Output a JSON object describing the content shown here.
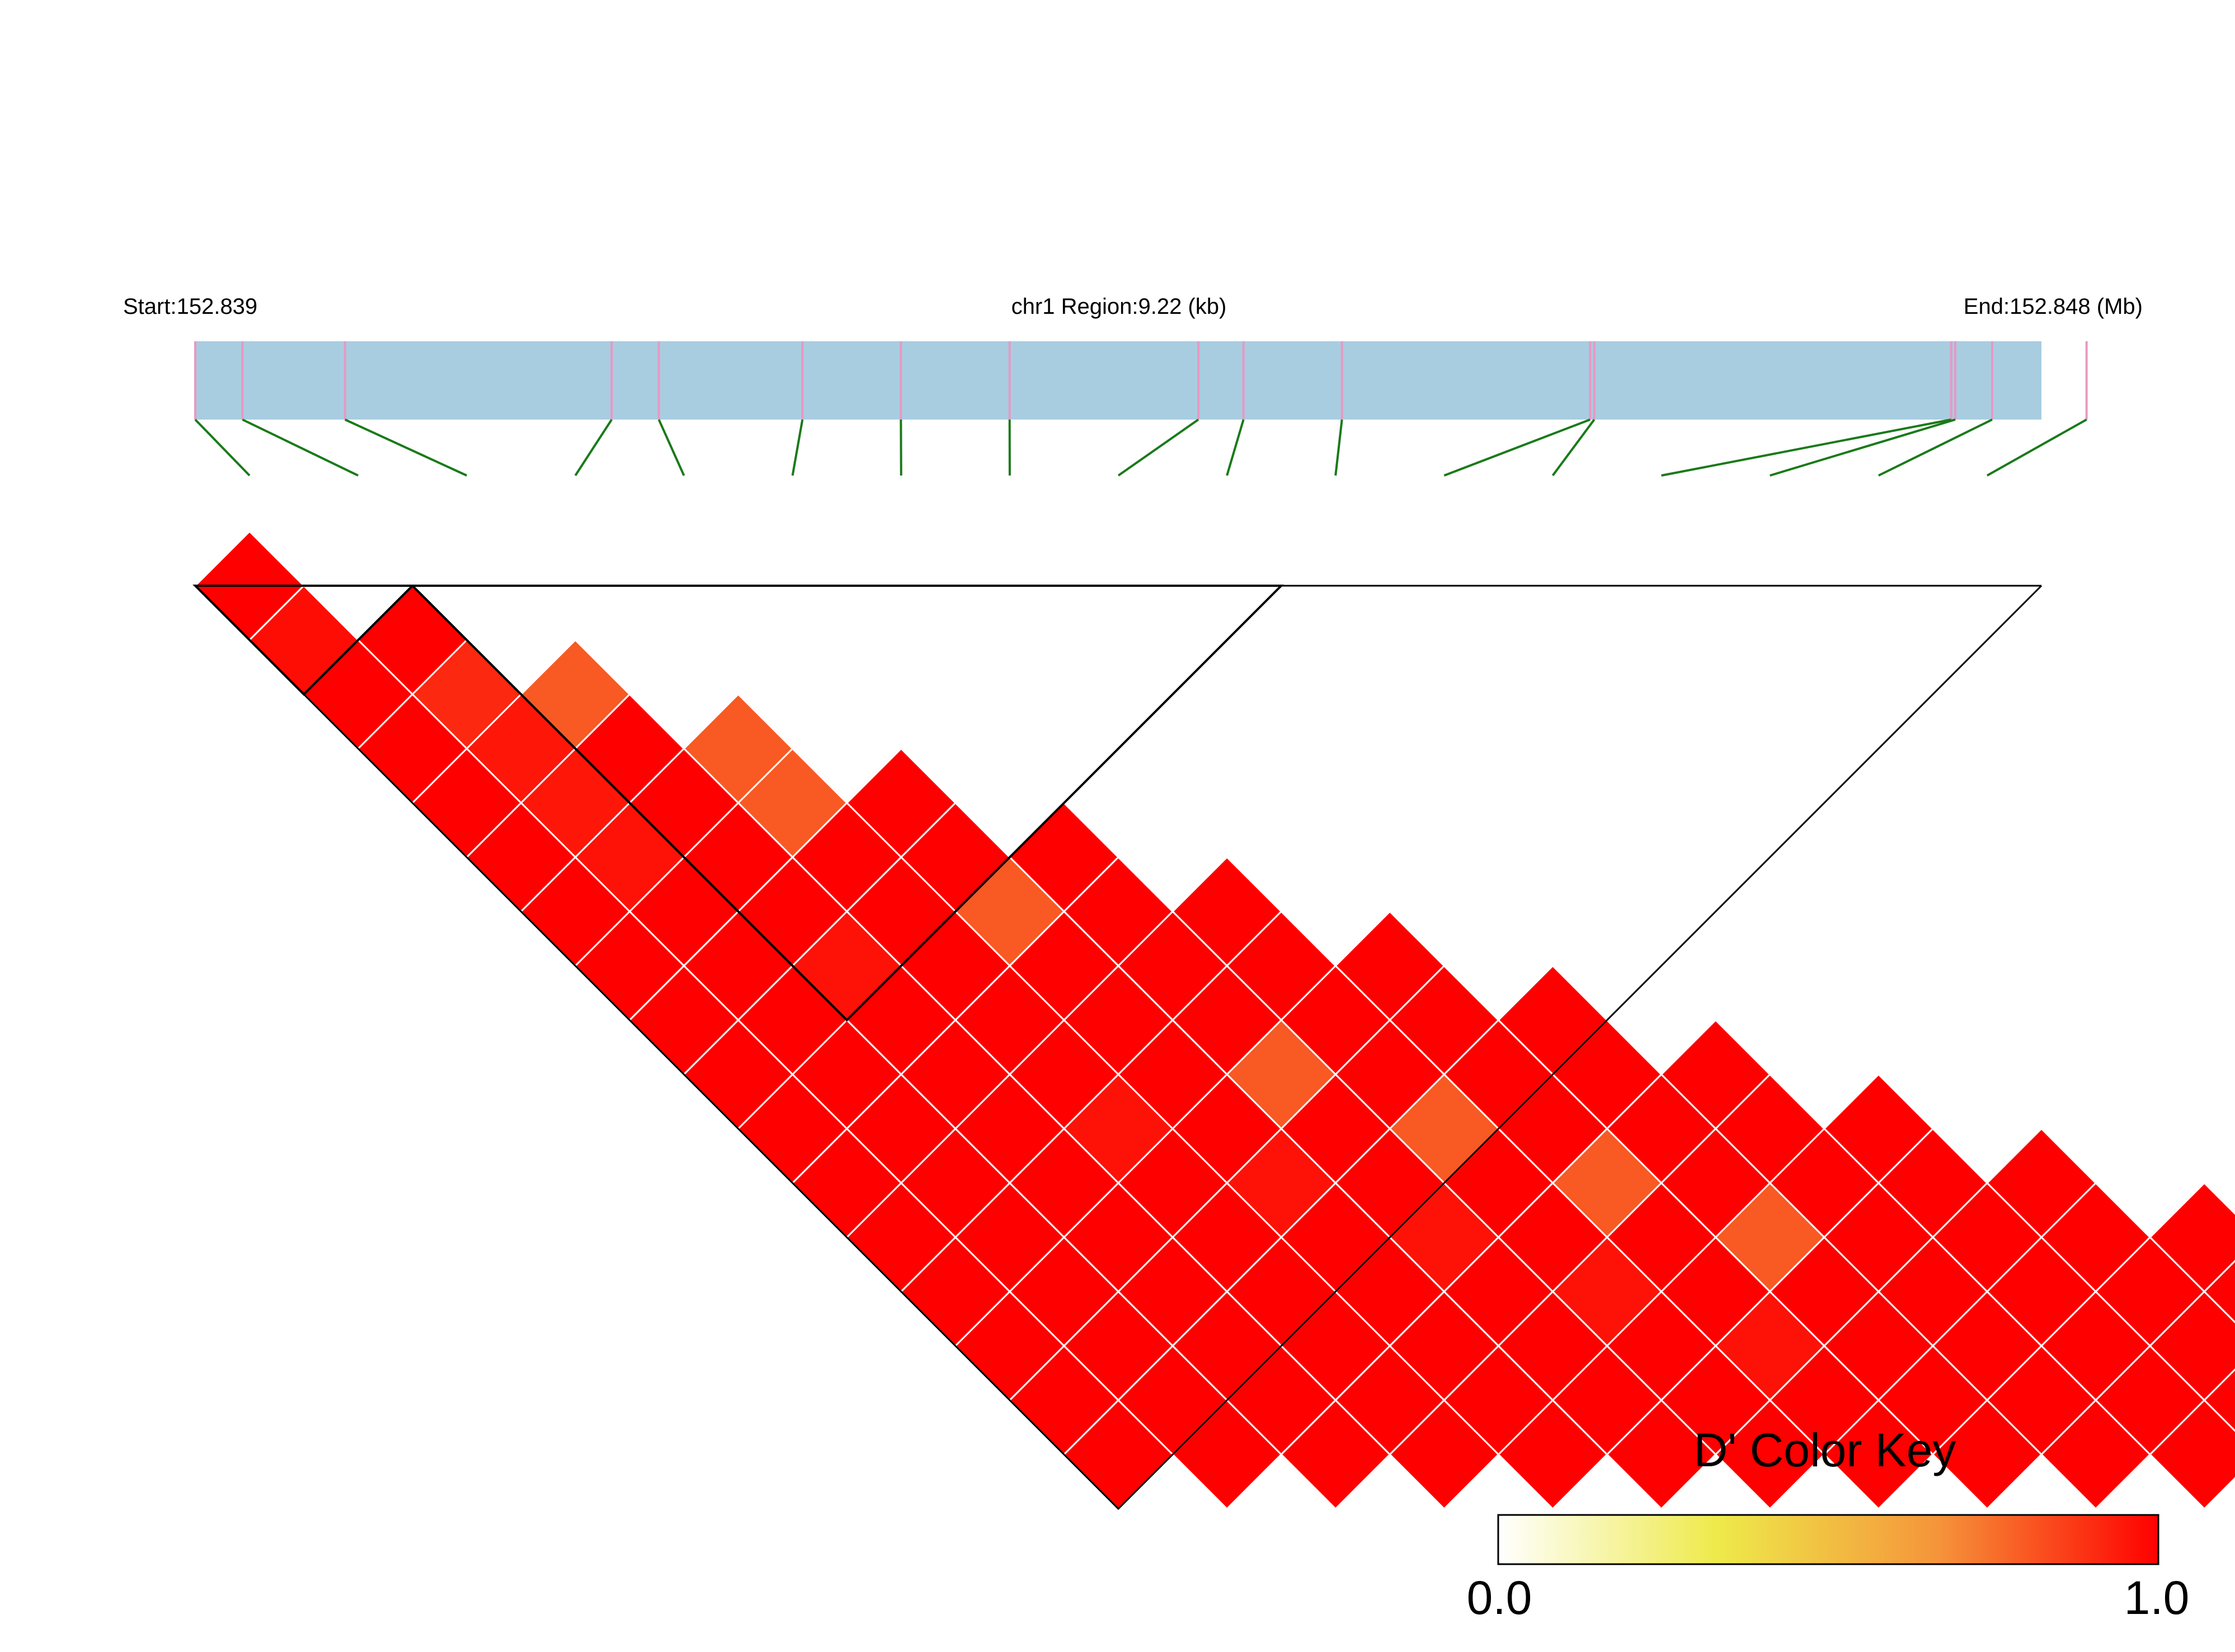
{
  "chart_data": {
    "type": "heatmap",
    "subtype": "ld-triangle",
    "title": "",
    "start_label": "Start:152.839",
    "region_label": "chr1 Region:9.22 (kb)",
    "end_label": "End:152.848 (Mb)",
    "region_start_mb": 152.839,
    "region_end_mb": 152.848,
    "region_length_kb": 9.22,
    "snp_positions_mb": [
      152.839,
      152.83923,
      152.83973,
      152.84103,
      152.84126,
      152.84196,
      152.84244,
      152.84297,
      152.84389,
      152.84411,
      152.84459,
      152.8458,
      152.84582,
      152.84756,
      152.84758,
      152.84776,
      152.84822
    ],
    "measure": "D'",
    "dprime_matrix": [
      [
        1.0
      ],
      [
        0.97,
        1.0
      ],
      [
        1.0,
        0.91,
        0.8
      ],
      [
        1.0,
        0.95,
        1.0,
        0.8
      ],
      [
        1.0,
        0.95,
        1.0,
        0.8,
        1.0
      ],
      [
        1.0,
        0.96,
        1.0,
        1.0,
        1.0,
        1.0
      ],
      [
        1.0,
        1.0,
        1.0,
        1.0,
        0.8,
        1.0,
        1.0
      ],
      [
        1.0,
        1.0,
        0.96,
        1.0,
        1.0,
        1.0,
        1.0,
        1.0
      ],
      [
        1.0,
        1.0,
        1.0,
        1.0,
        1.0,
        1.0,
        1.0,
        1.0,
        1.0
      ],
      [
        1.0,
        1.0,
        1.0,
        1.0,
        1.0,
        0.8,
        1.0,
        1.0,
        1.0,
        1.0
      ],
      [
        1.0,
        1.0,
        1.0,
        0.96,
        1.0,
        1.0,
        0.8,
        1.0,
        1.0,
        1.0,
        1.0
      ],
      [
        1.0,
        1.0,
        1.0,
        1.0,
        0.96,
        1.0,
        1.0,
        0.8,
        1.0,
        1.0,
        1.0,
        1.0
      ],
      [
        1.0,
        1.0,
        1.0,
        1.0,
        1.0,
        0.96,
        1.0,
        1.0,
        0.8,
        1.0,
        1.0,
        1.0,
        1.0
      ],
      [
        1.0,
        1.0,
        1.0,
        1.0,
        1.0,
        1.0,
        0.96,
        1.0,
        1.0,
        1.0,
        1.0,
        1.0,
        1.0,
        1.0
      ],
      [
        1.0,
        1.0,
        1.0,
        1.0,
        1.0,
        1.0,
        1.0,
        0.96,
        1.0,
        1.0,
        1.0,
        1.0,
        1.0,
        1.0,
        1.0
      ],
      [
        1.0,
        1.0,
        1.0,
        1.0,
        1.0,
        1.0,
        1.0,
        1.0,
        1.0,
        1.0,
        1.0,
        1.0,
        1.0,
        1.0,
        1.0,
        1.0
      ],
      [
        1.0,
        1.0,
        1.0,
        1.0,
        1.0,
        1.0,
        1.0,
        1.0,
        1.0,
        1.0,
        1.0,
        1.0,
        1.0,
        1.0,
        1.0,
        1.0,
        1.0
      ]
    ],
    "haplotype_blocks": [
      [
        0,
        2
      ],
      [
        2,
        10
      ]
    ],
    "color_key": {
      "title": "D' Color Key",
      "min_label": "0.0",
      "max_label": "1.0",
      "range": [
        0.0,
        1.0
      ],
      "stops": [
        "#ffffff",
        "#eeea4a",
        "#f5943a",
        "#ff0000"
      ]
    },
    "colors": {
      "region_bar": "#a8cde0",
      "snp_tick": "#e898c4",
      "connector_line": "#1a7a1a",
      "cell_high": "#ff0000",
      "cell_mid": "#f5943a",
      "cell_grid": "#ffffff",
      "block_outline": "#000000"
    }
  }
}
